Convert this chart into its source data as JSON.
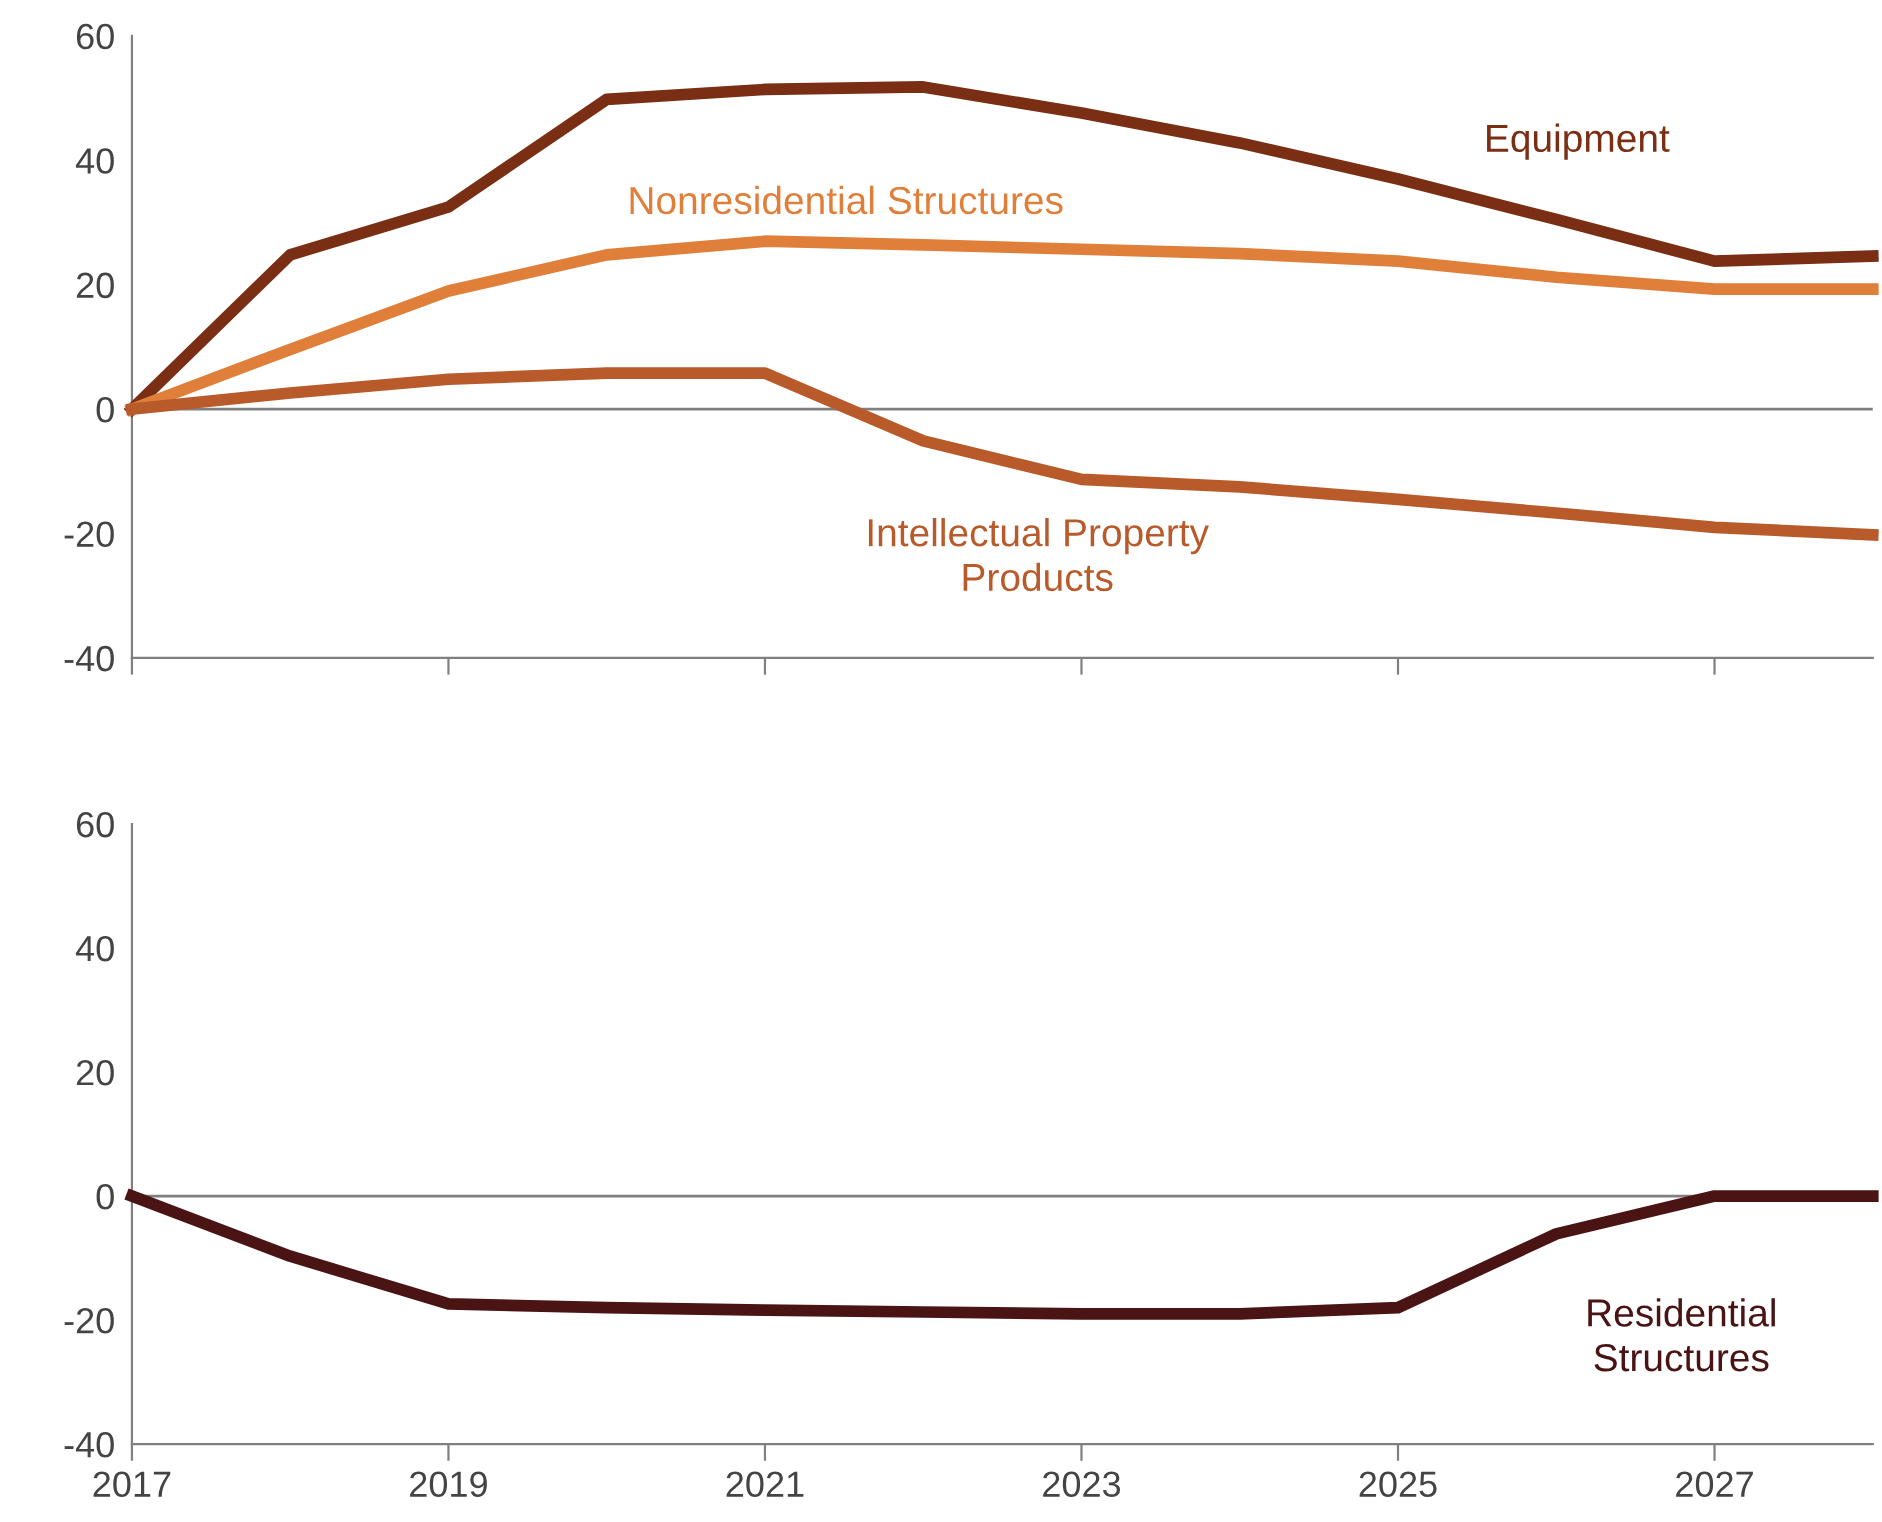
{
  "chart_data": [
    {
      "type": "line",
      "x": [
        2017,
        2018,
        2019,
        2020,
        2021,
        2022,
        2023,
        2024,
        2025,
        2026,
        2027,
        2028
      ],
      "xlim": [
        2017,
        2028
      ],
      "xticks": [
        2017,
        2019,
        2021,
        2023,
        2025,
        2027
      ],
      "ylim": [
        -40,
        60
      ],
      "yticks": [
        -40,
        -20,
        0,
        20,
        40,
        60
      ],
      "tick_labels": "y",
      "grid": false,
      "legend": false,
      "marker": "none",
      "line_style": "solid",
      "ref_lines": [
        {
          "axis": "y",
          "value": 0,
          "color": "#808080"
        }
      ],
      "series": [
        {
          "name": "Equipment",
          "color": "#7a2e14",
          "values": [
            0,
            24.8,
            32.5,
            49.8,
            51.4,
            51.8,
            47.6,
            42.8,
            37,
            30.5,
            23.8,
            24.6
          ]
        },
        {
          "name": "Nonresidential Structures",
          "color": "#e07f3a",
          "values": [
            0,
            9.6,
            19,
            24.8,
            27,
            26.4,
            25.7,
            25,
            23.8,
            21.2,
            19.3,
            19.3
          ]
        },
        {
          "name": "Intellectual Property\nProducts",
          "color": "#b85a2a",
          "values": [
            0,
            2.6,
            4.8,
            5.8,
            5.8,
            -5.1,
            -11.3,
            -12.5,
            -14.5,
            -16.7,
            -19,
            -20.2
          ]
        }
      ]
    },
    {
      "type": "line",
      "x": [
        2017,
        2018,
        2019,
        2020,
        2021,
        2022,
        2023,
        2024,
        2025,
        2026,
        2027,
        2028
      ],
      "xlim": [
        2017,
        2028
      ],
      "xticks": [
        2017,
        2019,
        2021,
        2023,
        2025,
        2027
      ],
      "ylim": [
        -40,
        60
      ],
      "yticks": [
        -40,
        -20,
        0,
        20,
        40,
        60
      ],
      "grid": false,
      "legend": false,
      "marker": "none",
      "line_style": "solid",
      "ref_lines": [
        {
          "axis": "y",
          "value": 0,
          "color": "#808080"
        }
      ],
      "series": [
        {
          "name": "Residential\nStructures",
          "color": "#4a1414",
          "values": [
            0,
            -9.7,
            -17.4,
            -18,
            -18.4,
            -18.7,
            -19,
            -19,
            -18,
            -6.1,
            0,
            0
          ]
        }
      ]
    }
  ]
}
